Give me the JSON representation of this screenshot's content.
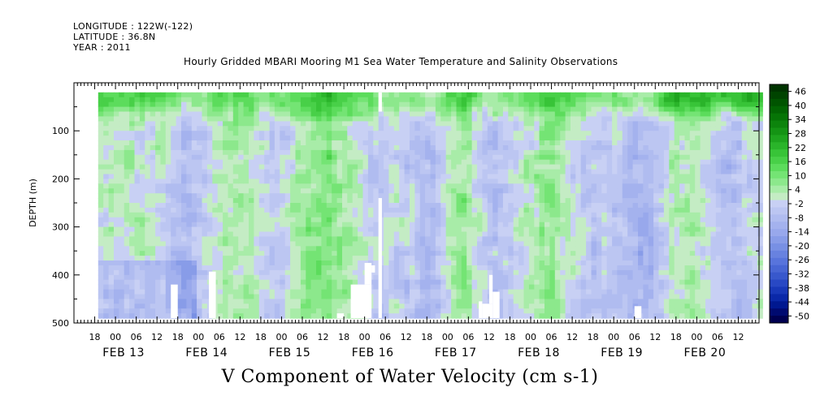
{
  "header": {
    "longitude": "LONGITUDE : 122W(-122)",
    "latitude": "LATITUDE : 36.8N",
    "year": "YEAR : 2011"
  },
  "chart_data": {
    "type": "heatmap",
    "title": "Hourly Gridded MBARI Mooring M1 Sea Water Temperature and Salinity Observations",
    "xlabel": "V Component of Water Velocity (cm s-1)",
    "ylabel": "DEPTH (m)",
    "ylim": [
      500,
      0
    ],
    "yticks": [
      100,
      200,
      300,
      400,
      500
    ],
    "xrange_hours": [
      "FEB 12 12:00",
      "FEB 20 18:00"
    ],
    "hour_ticks": [
      "18",
      "00",
      "06",
      "12",
      "18",
      "00",
      "06",
      "12",
      "18",
      "00",
      "06",
      "12",
      "18",
      "00",
      "06",
      "12",
      "18",
      "00",
      "06",
      "12",
      "18",
      "00",
      "06",
      "12",
      "18",
      "00",
      "06",
      "12",
      "18",
      "00",
      "06",
      "12"
    ],
    "date_labels": [
      "FEB 13",
      "FEB 14",
      "FEB 15",
      "FEB 16",
      "FEB 17",
      "FEB 18",
      "FEB 19",
      "FEB 20"
    ],
    "colorbar": {
      "labels": [
        "46",
        "40",
        "34",
        "28",
        "22",
        "16",
        "10",
        "4",
        "-2",
        "-8",
        "-14",
        "-20",
        "-26",
        "-32",
        "-38",
        "-44",
        "-50"
      ],
      "levels": [
        -50,
        -47,
        -44,
        -41,
        -38,
        -35,
        -32,
        -29,
        -26,
        -23,
        -20,
        -17,
        -14,
        -11,
        -8,
        -5,
        -2,
        1,
        4,
        7,
        10,
        13,
        16,
        19,
        22,
        25,
        28,
        31,
        34,
        37,
        40,
        43,
        46,
        49
      ],
      "colors": [
        "#000050",
        "#000a70",
        "#001890",
        "#0a28a8",
        "#1838b8",
        "#2848c4",
        "#3858cc",
        "#4866d4",
        "#5874dc",
        "#6882e0",
        "#7890e4",
        "#889ce8",
        "#98a8ec",
        "#a4b2ee",
        "#b0bcf0",
        "#bcc6f2",
        "#c8d0f4",
        "#c4ecc4",
        "#a8eca8",
        "#8ce88c",
        "#74e474",
        "#5cdc5c",
        "#48d048",
        "#38c438",
        "#2ab42a",
        "#1ea41e",
        "#149414",
        "#0c840c",
        "#067406",
        "#026402",
        "#005400",
        "#004400",
        "#003400"
      ]
    },
    "field_description_note": ""
  }
}
